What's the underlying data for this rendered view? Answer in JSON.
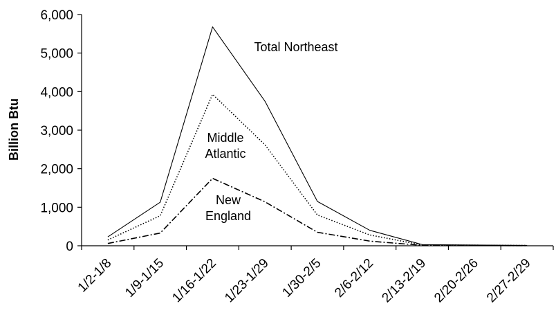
{
  "chart_data": {
    "type": "line",
    "categories": [
      "1/2-1/8",
      "1/9-1/15",
      "1/16-1/22",
      "1/23-1/29",
      "1/30-2/5",
      "2/6-2/12",
      "2/13-2/19",
      "2/20-2/26",
      "2/27-2/29"
    ],
    "ylabel": "Billion Btu",
    "ylim": [
      0,
      6000
    ],
    "yticks": [
      0,
      1000,
      2000,
      3000,
      4000,
      5000,
      6000
    ],
    "ytick_labels": [
      "0",
      "1,000",
      "2,000",
      "3,000",
      "4,000",
      "5,000",
      "6,000"
    ],
    "grid": false,
    "series": [
      {
        "name": "Total Northeast",
        "style": "solid",
        "values": [
          230,
          1130,
          5680,
          3750,
          1150,
          400,
          30,
          20,
          10
        ]
      },
      {
        "name": "Middle Atlantic",
        "style": "dotted",
        "values": [
          150,
          780,
          3930,
          2620,
          800,
          280,
          20,
          15,
          8
        ]
      },
      {
        "name": "New England",
        "style": "dashdot",
        "values": [
          60,
          330,
          1750,
          1140,
          350,
          120,
          10,
          5,
          3
        ]
      }
    ],
    "annotations": [
      {
        "lines": [
          "Total Northeast"
        ]
      },
      {
        "lines": [
          "Middle",
          "Atlantic"
        ]
      },
      {
        "lines": [
          "New",
          "England"
        ]
      }
    ]
  }
}
